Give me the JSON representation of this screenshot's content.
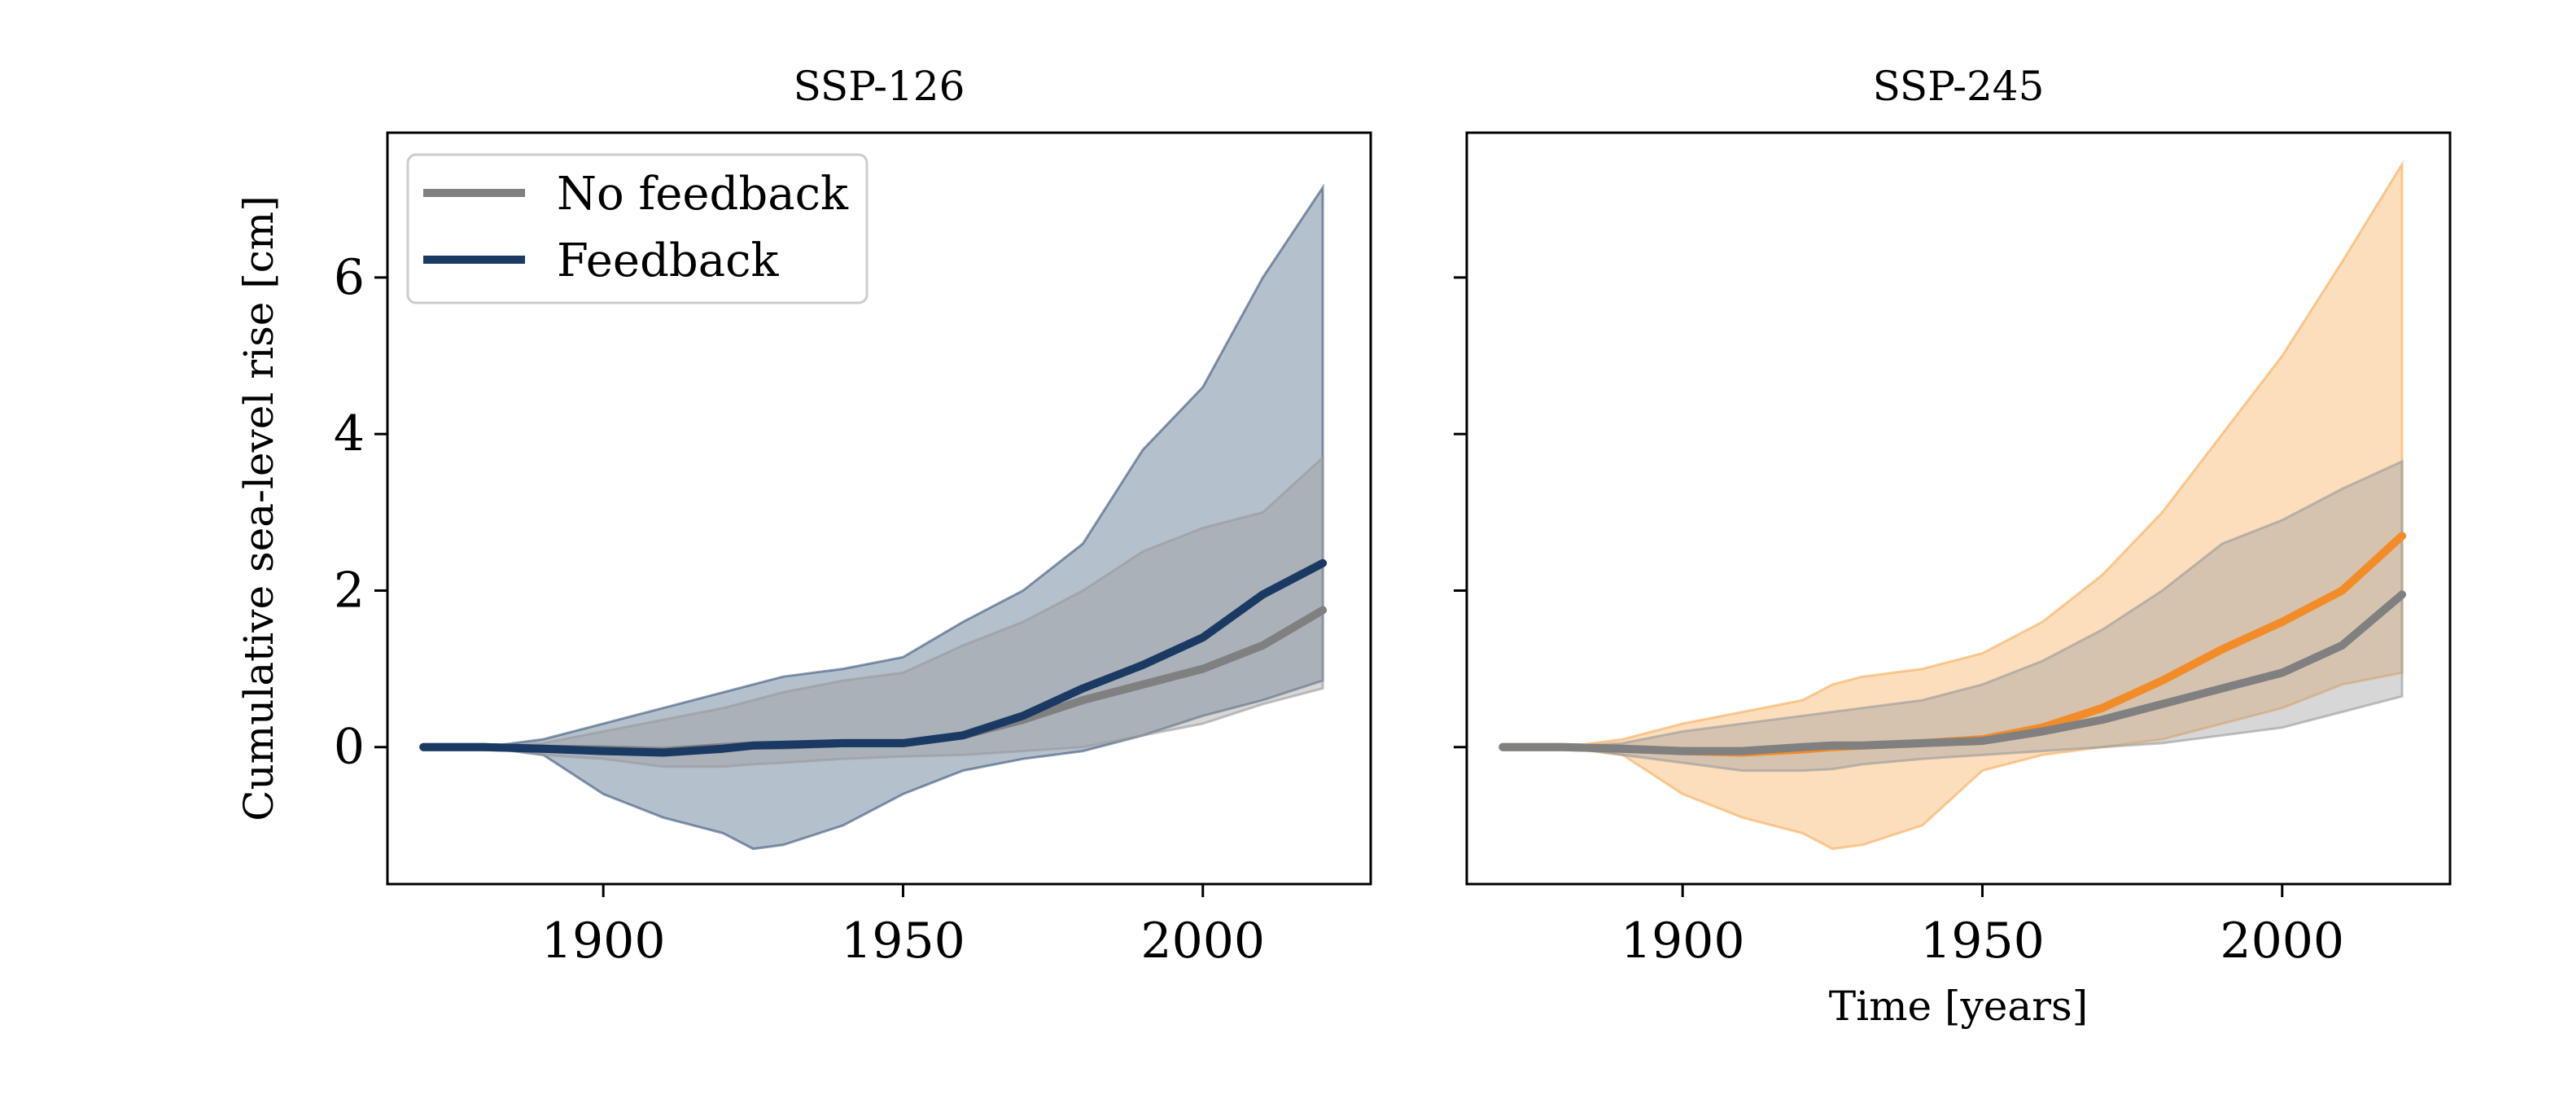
{
  "chart_data": [
    {
      "type": "line",
      "title": "SSP-126",
      "xlabel": "",
      "ylabel": "Cumulative sea-level rise [cm]",
      "xlim": [
        1864,
        2028
      ],
      "ylim": [
        -1.75,
        7.85
      ],
      "xticks": [
        1900,
        1950,
        2000
      ],
      "yticks": [
        0,
        2,
        4,
        6
      ],
      "grid": false,
      "legend_position": "top-left",
      "legend": [
        "No feedback",
        "Feedback"
      ],
      "colors": {
        "no_feedback": "#808080",
        "feedback": "#1a3a63",
        "band_feedback": "#1a3a63",
        "band_nofeedback": "#9a9a9a"
      },
      "x": [
        1870,
        1880,
        1890,
        1900,
        1910,
        1920,
        1925,
        1930,
        1940,
        1950,
        1960,
        1970,
        1980,
        1990,
        2000,
        2010,
        2020
      ],
      "series": [
        {
          "name": "No feedback",
          "values": [
            0,
            0,
            -0.02,
            -0.03,
            -0.05,
            0.0,
            0.02,
            0.02,
            0.05,
            0.05,
            0.15,
            0.35,
            0.6,
            0.8,
            1.0,
            1.3,
            1.75
          ],
          "band_low": [
            0,
            0,
            -0.1,
            -0.15,
            -0.25,
            -0.25,
            -0.22,
            -0.2,
            -0.15,
            -0.12,
            -0.1,
            -0.05,
            0.0,
            0.15,
            0.3,
            0.55,
            0.75
          ],
          "band_high": [
            0,
            0,
            0.05,
            0.2,
            0.35,
            0.5,
            0.6,
            0.7,
            0.85,
            0.95,
            1.3,
            1.6,
            2.0,
            2.5,
            2.8,
            3.0,
            3.7
          ]
        },
        {
          "name": "Feedback",
          "values": [
            0,
            0,
            -0.02,
            -0.05,
            -0.07,
            -0.02,
            0.02,
            0.03,
            0.05,
            0.05,
            0.15,
            0.4,
            0.75,
            1.05,
            1.4,
            1.95,
            2.35
          ],
          "band_low": [
            0,
            0,
            -0.1,
            -0.6,
            -0.9,
            -1.1,
            -1.3,
            -1.25,
            -1.0,
            -0.6,
            -0.3,
            -0.15,
            -0.05,
            0.15,
            0.4,
            0.6,
            0.85
          ],
          "band_high": [
            0,
            0,
            0.1,
            0.3,
            0.5,
            0.7,
            0.8,
            0.9,
            1.0,
            1.15,
            1.6,
            2.0,
            2.6,
            3.8,
            4.6,
            6.0,
            7.15
          ]
        }
      ]
    },
    {
      "type": "line",
      "title": "SSP-245",
      "xlabel": "Time [years]",
      "ylabel": "",
      "xlim": [
        1864,
        2028
      ],
      "ylim": [
        -1.75,
        7.85
      ],
      "xticks": [
        1900,
        1950,
        2000
      ],
      "yticks": [
        0,
        2,
        4,
        6
      ],
      "grid": false,
      "colors": {
        "no_feedback": "#808080",
        "feedback": "#f28c28",
        "band_feedback": "#f5a040",
        "band_nofeedback": "#9a9a9a"
      },
      "x": [
        1870,
        1880,
        1890,
        1900,
        1910,
        1920,
        1925,
        1930,
        1940,
        1950,
        1960,
        1970,
        1980,
        1990,
        2000,
        2010,
        2020
      ],
      "series": [
        {
          "name": "No feedback",
          "values": [
            0,
            0,
            -0.02,
            -0.05,
            -0.05,
            0.0,
            0.02,
            0.02,
            0.05,
            0.08,
            0.2,
            0.35,
            0.55,
            0.75,
            0.95,
            1.3,
            1.95
          ],
          "band_low": [
            0,
            0,
            -0.1,
            -0.2,
            -0.3,
            -0.3,
            -0.28,
            -0.22,
            -0.15,
            -0.1,
            -0.05,
            0.0,
            0.05,
            0.15,
            0.25,
            0.45,
            0.65
          ],
          "band_high": [
            0,
            0,
            0.05,
            0.2,
            0.3,
            0.4,
            0.45,
            0.5,
            0.6,
            0.8,
            1.1,
            1.5,
            2.0,
            2.6,
            2.9,
            3.3,
            3.65
          ]
        },
        {
          "name": "Feedback",
          "values": [
            0,
            0,
            -0.02,
            -0.05,
            -0.07,
            -0.03,
            0.0,
            0.02,
            0.05,
            0.1,
            0.25,
            0.5,
            0.85,
            1.25,
            1.6,
            2.0,
            2.7
          ],
          "band_low": [
            0,
            0,
            -0.1,
            -0.6,
            -0.9,
            -1.1,
            -1.3,
            -1.25,
            -1.0,
            -0.3,
            -0.1,
            0.0,
            0.1,
            0.3,
            0.5,
            0.8,
            0.95
          ],
          "band_high": [
            0,
            0,
            0.1,
            0.3,
            0.45,
            0.6,
            0.8,
            0.9,
            1.0,
            1.2,
            1.6,
            2.2,
            3.0,
            4.0,
            5.0,
            6.2,
            7.45
          ]
        }
      ]
    }
  ]
}
